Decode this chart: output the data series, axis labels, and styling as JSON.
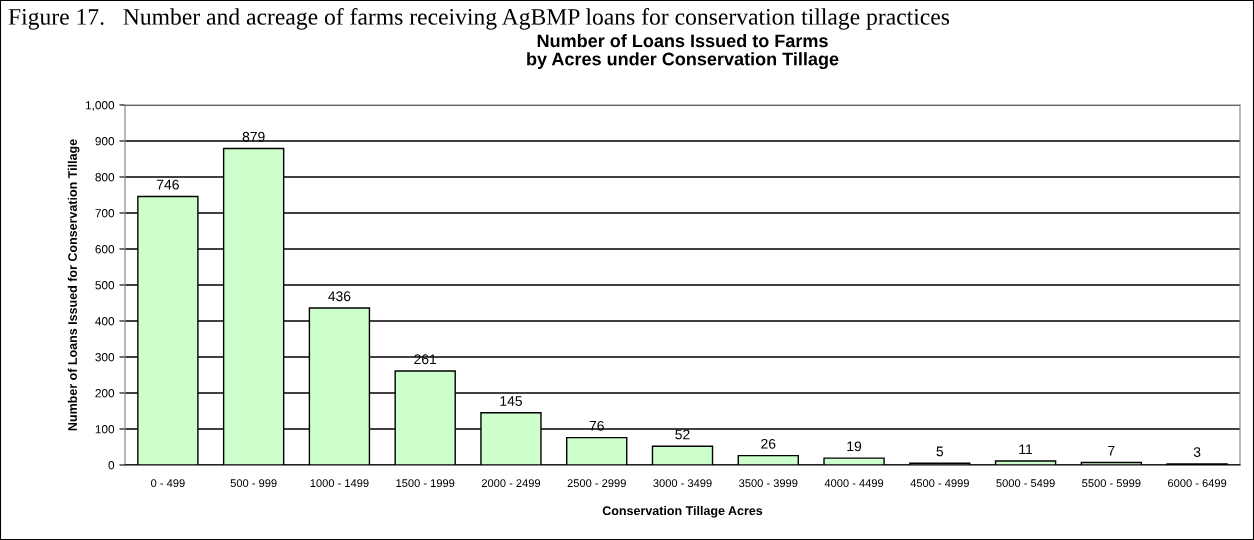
{
  "chart_data": {
    "type": "bar",
    "title": "Figure 17.   Number and acreage of farms receiving AgBMP loans for conservation tillage practices",
    "subtitle": "Number of Loans Issued to Farms\nby Acres under Conservation Tillage",
    "xlabel": "Conservation Tillage Acres",
    "ylabel": "Number of Loans Issued for Conservation Tillage",
    "categories": [
      "0 - 499",
      "500 - 999",
      "1000 - 1499",
      "1500 - 1999",
      "2000 - 2499",
      "2500 - 2999",
      "3000 - 3499",
      "3500 - 3999",
      "4000 - 4499",
      "4500 - 4999",
      "5000 - 5499",
      "5500 - 5999",
      "6000 - 6499"
    ],
    "values": [
      746,
      879,
      436,
      261,
      145,
      76,
      52,
      26,
      19,
      5,
      11,
      7,
      3
    ],
    "color": "#ccffcc",
    "data_labels": true,
    "ylim": [
      0,
      1000
    ],
    "yticks": [
      0,
      100,
      200,
      300,
      400,
      500,
      600,
      700,
      800,
      900,
      {
        "value": 1000,
        "label": "1,000"
      }
    ],
    "grid": "y",
    "legend": false
  }
}
